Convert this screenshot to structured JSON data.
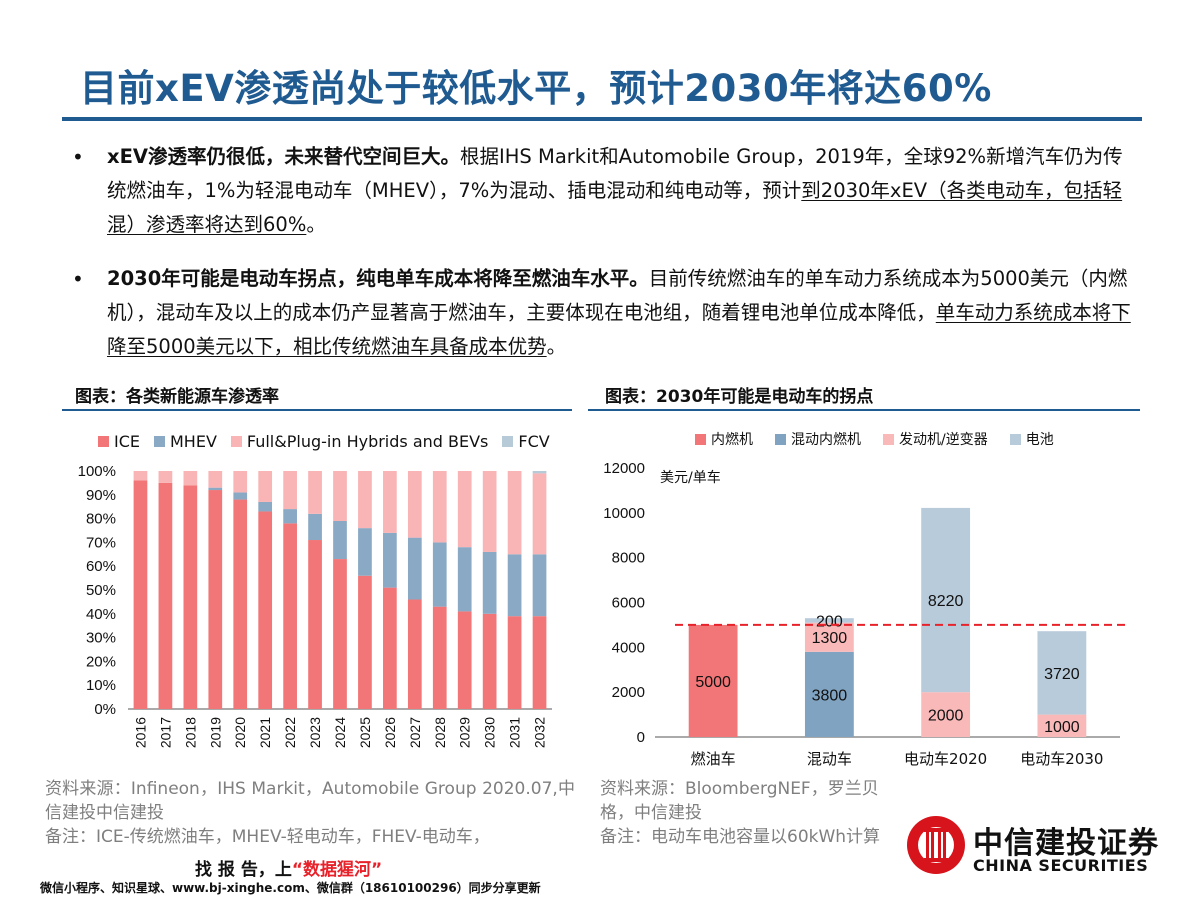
{
  "page_title": "目前xEV渗透尚处于较低水平，预计2030年将达60%",
  "bullets": [
    {
      "lead": "xEV渗透率仍很低，未来替代空间巨大。",
      "text": "根据IHS Markit和Automobile Group，2019年，全球92%新增汽车仍为传统燃油车，1%为轻混电动车（MHEV），7%为混动、插电混动和纯电动等，预计",
      "underlined": "到2030年xEV（各类电动车，包括轻混）渗透率将达到60%",
      "tail": "。"
    },
    {
      "lead": "2030年可能是电动车拐点，纯电单车成本将降至燃油车水平。",
      "text": "目前传统燃油车的单车动力系统成本为5000美元（内燃机），混动车及以上的成本仍产显著高于燃油车，主要体现在电池组，随着锂电池单位成本降低，",
      "underlined": "单车动力系统成本将下降至5000美元以下，相比传统燃油车具备成本优势",
      "tail": "。"
    }
  ],
  "left_figure": {
    "title": "图表：各类新能源车渗透率",
    "source": "资料来源：Infineon，IHS Markit，Automobile Group 2020.07,中信建投中信建投",
    "note": "备注：ICE-传统燃油车，MHEV-轻电动车，FHEV-电动车，"
  },
  "right_figure": {
    "title": "图表：2030年可能是电动车的拐点",
    "source": "资料来源：BloombergNEF，罗兰贝格，中信建投",
    "note": "备注：电动车电池容量以60kWh计算"
  },
  "chart_data": [
    {
      "type": "bar",
      "stacked": true,
      "percent": true,
      "categories": [
        "2016",
        "2017",
        "2018",
        "2019",
        "2020",
        "2021",
        "2022",
        "2023",
        "2024",
        "2025",
        "2026",
        "2027",
        "2028",
        "2029",
        "2030",
        "2031",
        "2032"
      ],
      "series": [
        {
          "name": "ICE",
          "color": "#f27677",
          "values": [
            96,
            95,
            94,
            92,
            88,
            83,
            78,
            71,
            63,
            56,
            51,
            46,
            43,
            41,
            40,
            39,
            39
          ]
        },
        {
          "name": "MHEV",
          "color": "#8aa9c4",
          "values": [
            0,
            0,
            0,
            1,
            3,
            4,
            6,
            11,
            16,
            20,
            23,
            26,
            27,
            27,
            26,
            26,
            26
          ]
        },
        {
          "name": "Full&Plug-in Hybrids and BEVs",
          "color": "#f9b4b5",
          "values": [
            4,
            5,
            6,
            7,
            9,
            13,
            16,
            18,
            21,
            24,
            26,
            28,
            30,
            32,
            34,
            35,
            34
          ]
        },
        {
          "name": "FCV",
          "color": "#b6cad8",
          "values": [
            0,
            0,
            0,
            0,
            0,
            0,
            0,
            0,
            0,
            0,
            0,
            0,
            0,
            0,
            0,
            0,
            1
          ]
        }
      ],
      "yticks": [
        "0%",
        "10%",
        "20%",
        "30%",
        "40%",
        "50%",
        "60%",
        "70%",
        "80%",
        "90%",
        "100%"
      ],
      "ylim": [
        0,
        100
      ],
      "legend_position": "top"
    },
    {
      "type": "bar",
      "stacked": true,
      "categories": [
        "燃油车",
        "混动车",
        "电动车2020",
        "电动车2030"
      ],
      "ylabel": "美元/单车",
      "ylim": [
        0,
        12000
      ],
      "yticks": [
        "0",
        "2000",
        "4000",
        "6000",
        "8000",
        "10000",
        "12000"
      ],
      "series": [
        {
          "name": "内燃机",
          "color": "#f27677",
          "values": [
            5000,
            0,
            0,
            0
          ]
        },
        {
          "name": "混动内燃机",
          "color": "#7fa3c0",
          "values": [
            0,
            3800,
            0,
            0
          ]
        },
        {
          "name": "发动机/逆变器",
          "color": "#f9b9b9",
          "values": [
            0,
            1300,
            2000,
            1000
          ]
        },
        {
          "name": "电池",
          "color": "#b8cbda",
          "values": [
            0,
            200,
            8220,
            3720
          ]
        }
      ],
      "data_labels": [
        [
          "5000",
          "",
          "",
          ""
        ],
        [
          "",
          "3800",
          "",
          ""
        ],
        [
          "",
          "1300",
          "2000",
          "1000"
        ],
        [
          "",
          "200",
          "8220",
          "3720"
        ]
      ],
      "reference_line": {
        "value": 5000,
        "color": "#e8222a",
        "style": "dashed"
      },
      "legend_position": "top"
    }
  ],
  "logo": {
    "cn": "中信建投证券",
    "en": "CHINA SECURITIES",
    "icon": "citic-logo-icon"
  },
  "watermark": {
    "line1_prefix": "找 报 告，上",
    "line1_highlight": "“数据猩河”",
    "line2": "微信小程序、知识星球、www.bj-xinghe.com、微信群（18610100296）同步分享更新"
  }
}
